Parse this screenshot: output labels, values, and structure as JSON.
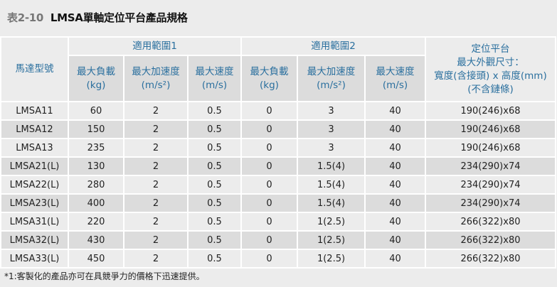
{
  "title": {
    "prefix": "表2-10",
    "text": "LMSA單軸定位平台產品規格"
  },
  "header": {
    "model": "馬達型號",
    "group1": "適用範圍1",
    "group2": "適用範圍2",
    "platform": [
      "定位平台",
      "最大外觀尺寸：",
      "寬度(含接頭) x 高度(mm)",
      "(不含鏈條)"
    ],
    "cols": [
      {
        "name": "最大負載",
        "unit": "(kg)"
      },
      {
        "name": "最大加速度",
        "unit": "(m/s²)"
      },
      {
        "name": "最大速度",
        "unit": "(m/s)"
      },
      {
        "name": "最大負載",
        "unit": "(kg)"
      },
      {
        "name": "最大加速度",
        "unit": "(m/s²)"
      },
      {
        "name": "最大速度",
        "unit": "(m/s)"
      }
    ]
  },
  "rows": [
    [
      "LMSA11",
      "60",
      "2",
      "0.5",
      "0",
      "3",
      "40",
      "190(246)x68"
    ],
    [
      "LMSA12",
      "150",
      "2",
      "0.5",
      "0",
      "3",
      "40",
      "190(246)x68"
    ],
    [
      "LMSA13",
      "235",
      "2",
      "0.5",
      "0",
      "3",
      "40",
      "190(246)x68"
    ],
    [
      "LMSA21(L)",
      "130",
      "2",
      "0.5",
      "0",
      "1.5(4)",
      "40",
      "234(290)x74"
    ],
    [
      "LMSA22(L)",
      "280",
      "2",
      "0.5",
      "0",
      "1.5(4)",
      "40",
      "234(290)x74"
    ],
    [
      "LMSA23(L)",
      "400",
      "2",
      "0.5",
      "0",
      "1.5(4)",
      "40",
      "234(290)x74"
    ],
    [
      "LMSA31(L)",
      "220",
      "2",
      "0.5",
      "0",
      "1(2.5)",
      "40",
      "266(322)x80"
    ],
    [
      "LMSA32(L)",
      "430",
      "2",
      "0.5",
      "0",
      "1(2.5)",
      "40",
      "266(322)x80"
    ],
    [
      "LMSA33(L)",
      "450",
      "2",
      "0.5",
      "0",
      "1(2.5)",
      "40",
      "266(322)x80"
    ]
  ],
  "footnote": "*1:客製化的產品亦可在具競爭力的價格下迅速提供。"
}
